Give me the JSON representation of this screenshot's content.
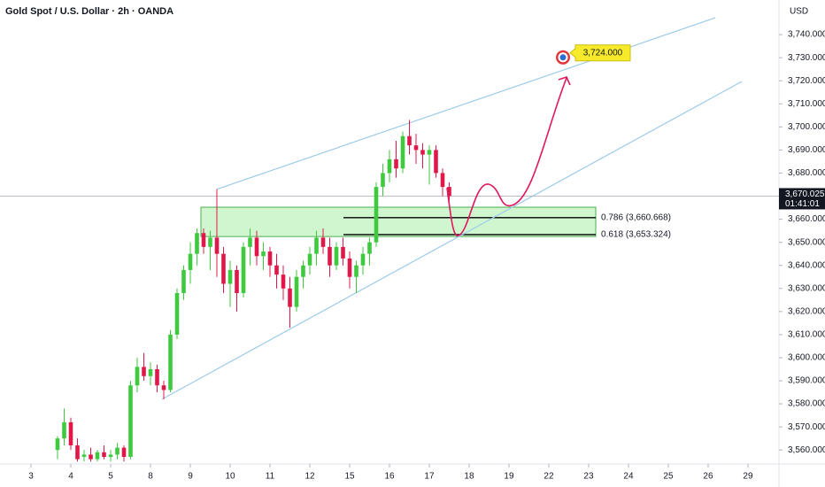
{
  "chart_data": {
    "type": "candlestick",
    "title": "Gold Spot / U.S. Dollar · 2h · OANDA",
    "currency": "USD",
    "up_color": "#3ec93e",
    "down_color": "#e0184a",
    "x": [
      4,
      5,
      6,
      7,
      8,
      9,
      10,
      11,
      12,
      13,
      14,
      15,
      16,
      17,
      18,
      19,
      20,
      21,
      22,
      23,
      24,
      25,
      26,
      27,
      28,
      29,
      30,
      31,
      32,
      33,
      34,
      35,
      36,
      37,
      38,
      39,
      40,
      41,
      42,
      43,
      44,
      45,
      46,
      47,
      48,
      49,
      50,
      51,
      52,
      53,
      54,
      55,
      56,
      57,
      58,
      59,
      60,
      61,
      62,
      63
    ],
    "open": [
      3560,
      3565,
      3572,
      3562,
      3557,
      3558,
      3556,
      3559,
      3557,
      3558,
      3561,
      3557,
      3588,
      3596,
      3592,
      3595,
      3588,
      3586,
      3610,
      3628,
      3638,
      3645,
      3654,
      3648,
      3652,
      3645,
      3632,
      3638,
      3628,
      3648,
      3652,
      3644,
      3646,
      3640,
      3636,
      3630,
      3622,
      3635,
      3640,
      3645,
      3652,
      3648,
      3640,
      3648,
      3643,
      3635,
      3640,
      3645,
      3650,
      3674,
      3680,
      3686,
      3682,
      3696,
      3692,
      3690,
      3688,
      3690,
      3680,
      3674
    ],
    "high": [
      3566,
      3578,
      3574,
      3565,
      3560,
      3561,
      3560,
      3562,
      3560,
      3563,
      3562,
      3590,
      3600,
      3602,
      3598,
      3597,
      3590,
      3612,
      3630,
      3640,
      3650,
      3656,
      3656,
      3655,
      3673,
      3648,
      3642,
      3640,
      3650,
      3656,
      3655,
      3650,
      3648,
      3645,
      3640,
      3635,
      3638,
      3642,
      3648,
      3655,
      3656,
      3652,
      3650,
      3652,
      3646,
      3642,
      3648,
      3652,
      3676,
      3684,
      3690,
      3694,
      3698,
      3703,
      3697,
      3693,
      3692,
      3692,
      3682,
      3676
    ],
    "low": [
      3556,
      3562,
      3560,
      3555,
      3555,
      3555,
      3555,
      3556,
      3555,
      3556,
      3555,
      3556,
      3585,
      3590,
      3588,
      3585,
      3582,
      3585,
      3608,
      3625,
      3632,
      3640,
      3645,
      3638,
      3635,
      3628,
      3622,
      3620,
      3626,
      3640,
      3640,
      3638,
      3635,
      3630,
      3625,
      3613,
      3620,
      3630,
      3636,
      3640,
      3645,
      3635,
      3638,
      3640,
      3630,
      3628,
      3636,
      3640,
      3648,
      3670,
      3676,
      3678,
      3680,
      3688,
      3684,
      3682,
      3675,
      3678,
      3670,
      3668
    ],
    "close": [
      3565,
      3572,
      3562,
      3556,
      3558,
      3556,
      3559,
      3557,
      3558,
      3561,
      3557,
      3588,
      3596,
      3592,
      3595,
      3588,
      3586,
      3610,
      3628,
      3638,
      3645,
      3654,
      3648,
      3652,
      3645,
      3632,
      3638,
      3628,
      3648,
      3652,
      3644,
      3646,
      3640,
      3636,
      3630,
      3622,
      3635,
      3640,
      3645,
      3652,
      3648,
      3640,
      3648,
      3643,
      3635,
      3640,
      3645,
      3650,
      3674,
      3680,
      3686,
      3682,
      3696,
      3692,
      3690,
      3688,
      3690,
      3680,
      3674,
      3670.025
    ],
    "xlim": [
      -4.6667,
      112.6667
    ],
    "xticks": [
      {
        "value": 0,
        "label": "3"
      },
      {
        "value": 6,
        "label": "4"
      },
      {
        "value": 12,
        "label": "5"
      },
      {
        "value": 18,
        "label": "8"
      },
      {
        "value": 24,
        "label": "9"
      },
      {
        "value": 30,
        "label": "10"
      },
      {
        "value": 36,
        "label": "11"
      },
      {
        "value": 42,
        "label": "12"
      },
      {
        "value": 48,
        "label": "15"
      },
      {
        "value": 54,
        "label": "16"
      },
      {
        "value": 60,
        "label": "17"
      },
      {
        "value": 66,
        "label": "18"
      },
      {
        "value": 72,
        "label": "19"
      },
      {
        "value": 78,
        "label": "22"
      },
      {
        "value": 84,
        "label": "23"
      },
      {
        "value": 90,
        "label": "24"
      },
      {
        "value": 96,
        "label": "25"
      },
      {
        "value": 102,
        "label": "26"
      },
      {
        "value": 108,
        "label": "29"
      }
    ],
    "ylim": [
      3554.7,
      3755
    ],
    "yticks": [
      {
        "value": 3560,
        "label": "3,560.000"
      },
      {
        "value": 3570,
        "label": "3,570.000"
      },
      {
        "value": 3580,
        "label": "3,580.000"
      },
      {
        "value": 3590,
        "label": "3,590.000"
      },
      {
        "value": 3600,
        "label": "3,600.000"
      },
      {
        "value": 3610,
        "label": "3,610.000"
      },
      {
        "value": 3620,
        "label": "3,620.000"
      },
      {
        "value": 3630,
        "label": "3,630.000"
      },
      {
        "value": 3640,
        "label": "3,640.000"
      },
      {
        "value": 3650,
        "label": "3,650.000"
      },
      {
        "value": 3660,
        "label": "3,660.000"
      },
      {
        "value": 3670,
        "label": "3,670.000"
      },
      {
        "value": 3680,
        "label": "3,680.000"
      },
      {
        "value": 3690,
        "label": "3,690.000"
      },
      {
        "value": 3700,
        "label": "3,700.000"
      },
      {
        "value": 3710,
        "label": "3,710.000"
      },
      {
        "value": 3720,
        "label": "3,720.000"
      },
      {
        "value": 3730,
        "label": "3,730.000"
      },
      {
        "value": 3740,
        "label": "3,740.000"
      }
    ],
    "last_price": {
      "value": 3670.025,
      "label": "3,670.025"
    },
    "countdown": "01:41:01",
    "channel": [
      {
        "x": [
          28,
          103.07
        ],
        "y": [
          3673,
          3747.3
        ]
      },
      {
        "x": [
          19.73,
          107.07
        ],
        "y": [
          3582,
          3719.7
        ]
      }
    ],
    "zone": {
      "x": [
        25.6,
        85.07
      ],
      "y": [
        3652.5,
        3665.2
      ]
    },
    "fib_x": [
      47.07,
      85.07
    ],
    "fib_levels": [
      {
        "value": 3660.668,
        "label": "0.786 (3,660.668)"
      },
      {
        "value": 3653.324,
        "label": "0.618 (3,653.324)"
      }
    ],
    "target": {
      "value": 3724,
      "label": "3,724.000"
    }
  }
}
